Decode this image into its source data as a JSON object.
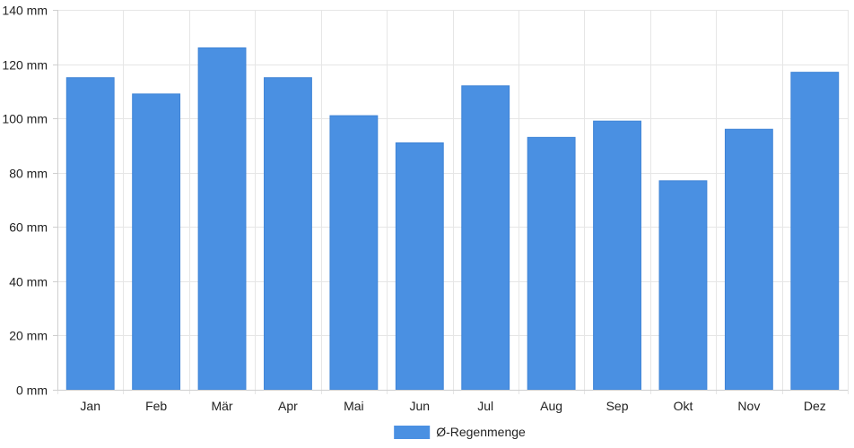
{
  "chart_data": {
    "type": "bar",
    "categories": [
      "Jan",
      "Feb",
      "Mär",
      "Apr",
      "Mai",
      "Jun",
      "Jul",
      "Aug",
      "Sep",
      "Okt",
      "Nov",
      "Dez"
    ],
    "series": [
      {
        "name": "Ø-Regenmenge",
        "values": [
          115,
          109,
          126,
          115,
          101,
          91,
          112,
          93,
          99,
          77,
          96,
          117
        ],
        "color": "#4a90e2"
      }
    ],
    "y_unit": "mm",
    "ylim": [
      0,
      140
    ],
    "y_ticks": [
      0,
      20,
      40,
      60,
      80,
      100,
      120,
      140
    ],
    "grid": true,
    "legend_position": "bottom-center"
  }
}
